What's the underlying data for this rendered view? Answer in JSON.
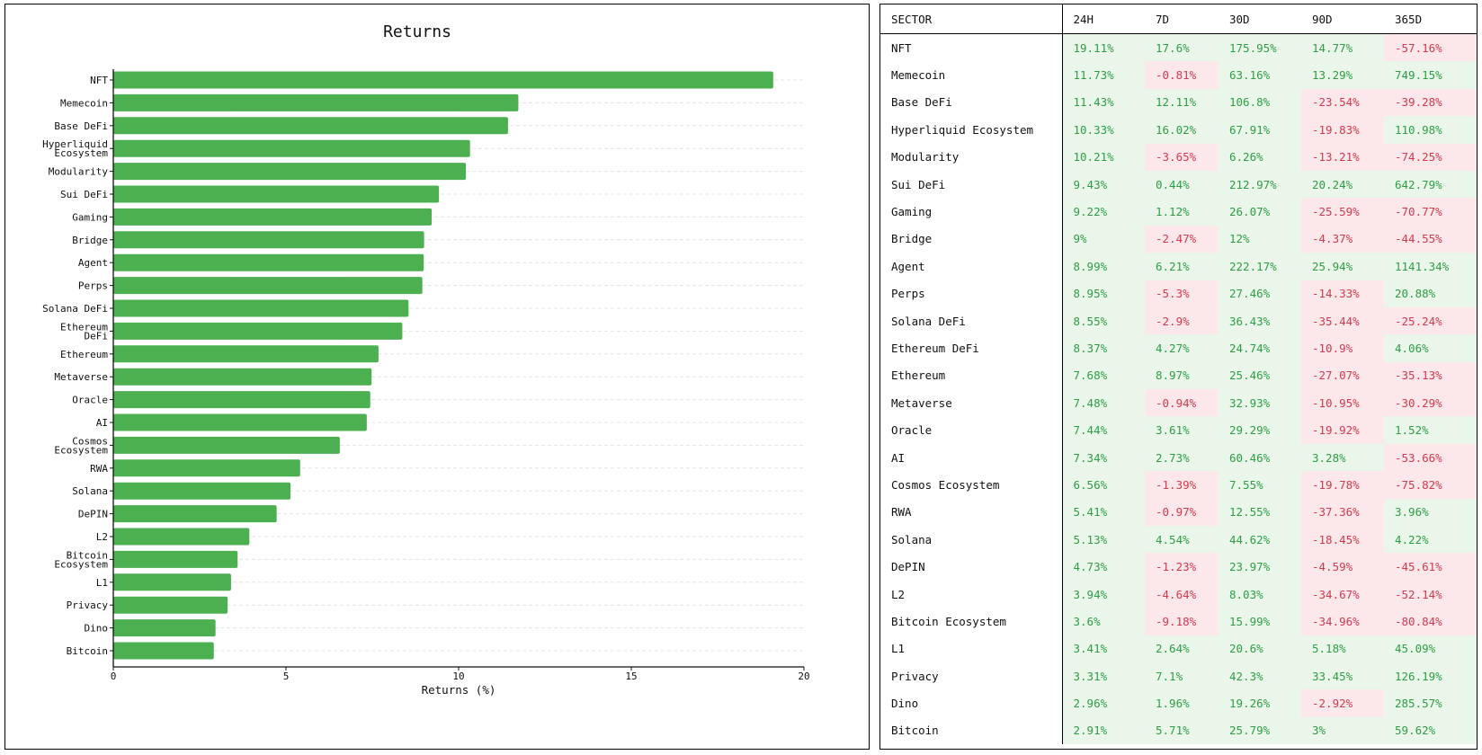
{
  "chart_data": {
    "type": "bar",
    "orientation": "horizontal",
    "title": "Returns",
    "xlabel": "Returns (%)",
    "ylabel": "",
    "xlim": [
      0,
      20
    ],
    "xticks": [
      0,
      5,
      10,
      15,
      20
    ],
    "grid": "horizontal dashed",
    "bar_color": "#4caf50",
    "categories": [
      "NFT",
      "Memecoin",
      "Base DeFi",
      "Hyperliquid Ecosystem",
      "Modularity",
      "Sui DeFi",
      "Gaming",
      "Bridge",
      "Agent",
      "Perps",
      "Solana DeFi",
      "Ethereum DeFi",
      "Ethereum",
      "Metaverse",
      "Oracle",
      "AI",
      "Cosmos Ecosystem",
      "RWA",
      "Solana",
      "DePIN",
      "L2",
      "Bitcoin Ecosystem",
      "L1",
      "Privacy",
      "Dino",
      "Bitcoin"
    ],
    "category_labels": [
      [
        "NFT"
      ],
      [
        "Memecoin"
      ],
      [
        "Base DeFi"
      ],
      [
        "Hyperliquid",
        "Ecosystem"
      ],
      [
        "Modularity"
      ],
      [
        "Sui DeFi"
      ],
      [
        "Gaming"
      ],
      [
        "Bridge"
      ],
      [
        "Agent"
      ],
      [
        "Perps"
      ],
      [
        "Solana DeFi"
      ],
      [
        "Ethereum",
        "DeFi"
      ],
      [
        "Ethereum"
      ],
      [
        "Metaverse"
      ],
      [
        "Oracle"
      ],
      [
        "AI"
      ],
      [
        "Cosmos",
        "Ecosystem"
      ],
      [
        "RWA"
      ],
      [
        "Solana"
      ],
      [
        "DePIN"
      ],
      [
        "L2"
      ],
      [
        "Bitcoin",
        "Ecosystem"
      ],
      [
        "L1"
      ],
      [
        "Privacy"
      ],
      [
        "Dino"
      ],
      [
        "Bitcoin"
      ]
    ],
    "values": [
      19.11,
      11.73,
      11.43,
      10.33,
      10.21,
      9.43,
      9.22,
      9.0,
      8.99,
      8.95,
      8.55,
      8.37,
      7.68,
      7.48,
      7.44,
      7.34,
      6.56,
      5.41,
      5.13,
      4.73,
      3.94,
      3.6,
      3.41,
      3.31,
      2.96,
      2.91
    ]
  },
  "table": {
    "colors": {
      "positive_bg": "#eaf6ea",
      "positive_text": "#2e9e44",
      "negative_bg": "#fce7ea",
      "negative_text": "#d23b4e"
    },
    "headers": [
      "SECTOR",
      "24H",
      "7D",
      "30D",
      "90D",
      "365D"
    ],
    "rows": [
      [
        "NFT",
        "19.11%",
        "17.6%",
        "175.95%",
        "14.77%",
        "-57.16%"
      ],
      [
        "Memecoin",
        "11.73%",
        "-0.81%",
        "63.16%",
        "13.29%",
        "749.15%"
      ],
      [
        "Base DeFi",
        "11.43%",
        "12.11%",
        "106.8%",
        "-23.54%",
        "-39.28%"
      ],
      [
        "Hyperliquid Ecosystem",
        "10.33%",
        "16.02%",
        "67.91%",
        "-19.83%",
        "110.98%"
      ],
      [
        "Modularity",
        "10.21%",
        "-3.65%",
        "6.26%",
        "-13.21%",
        "-74.25%"
      ],
      [
        "Sui DeFi",
        "9.43%",
        "0.44%",
        "212.97%",
        "20.24%",
        "642.79%"
      ],
      [
        "Gaming",
        "9.22%",
        "1.12%",
        "26.07%",
        "-25.59%",
        "-70.77%"
      ],
      [
        "Bridge",
        "9%",
        "-2.47%",
        "12%",
        "-4.37%",
        "-44.55%"
      ],
      [
        "Agent",
        "8.99%",
        "6.21%",
        "222.17%",
        "25.94%",
        "1141.34%"
      ],
      [
        "Perps",
        "8.95%",
        "-5.3%",
        "27.46%",
        "-14.33%",
        "20.88%"
      ],
      [
        "Solana DeFi",
        "8.55%",
        "-2.9%",
        "36.43%",
        "-35.44%",
        "-25.24%"
      ],
      [
        "Ethereum DeFi",
        "8.37%",
        "4.27%",
        "24.74%",
        "-10.9%",
        "4.06%"
      ],
      [
        "Ethereum",
        "7.68%",
        "8.97%",
        "25.46%",
        "-27.07%",
        "-35.13%"
      ],
      [
        "Metaverse",
        "7.48%",
        "-0.94%",
        "32.93%",
        "-10.95%",
        "-30.29%"
      ],
      [
        "Oracle",
        "7.44%",
        "3.61%",
        "29.29%",
        "-19.92%",
        "1.52%"
      ],
      [
        "AI",
        "7.34%",
        "2.73%",
        "60.46%",
        "3.28%",
        "-53.66%"
      ],
      [
        "Cosmos Ecosystem",
        "6.56%",
        "-1.39%",
        "7.55%",
        "-19.78%",
        "-75.82%"
      ],
      [
        "RWA",
        "5.41%",
        "-0.97%",
        "12.55%",
        "-37.36%",
        "3.96%"
      ],
      [
        "Solana",
        "5.13%",
        "4.54%",
        "44.62%",
        "-18.45%",
        "4.22%"
      ],
      [
        "DePIN",
        "4.73%",
        "-1.23%",
        "23.97%",
        "-4.59%",
        "-45.61%"
      ],
      [
        "L2",
        "3.94%",
        "-4.64%",
        "8.03%",
        "-34.67%",
        "-52.14%"
      ],
      [
        "Bitcoin Ecosystem",
        "3.6%",
        "-9.18%",
        "15.99%",
        "-34.96%",
        "-80.84%"
      ],
      [
        "L1",
        "3.41%",
        "2.64%",
        "20.6%",
        "5.18%",
        "45.09%"
      ],
      [
        "Privacy",
        "3.31%",
        "7.1%",
        "42.3%",
        "33.45%",
        "126.19%"
      ],
      [
        "Dino",
        "2.96%",
        "1.96%",
        "19.26%",
        "-2.92%",
        "285.57%"
      ],
      [
        "Bitcoin",
        "2.91%",
        "5.71%",
        "25.79%",
        "3%",
        "59.62%"
      ]
    ]
  }
}
